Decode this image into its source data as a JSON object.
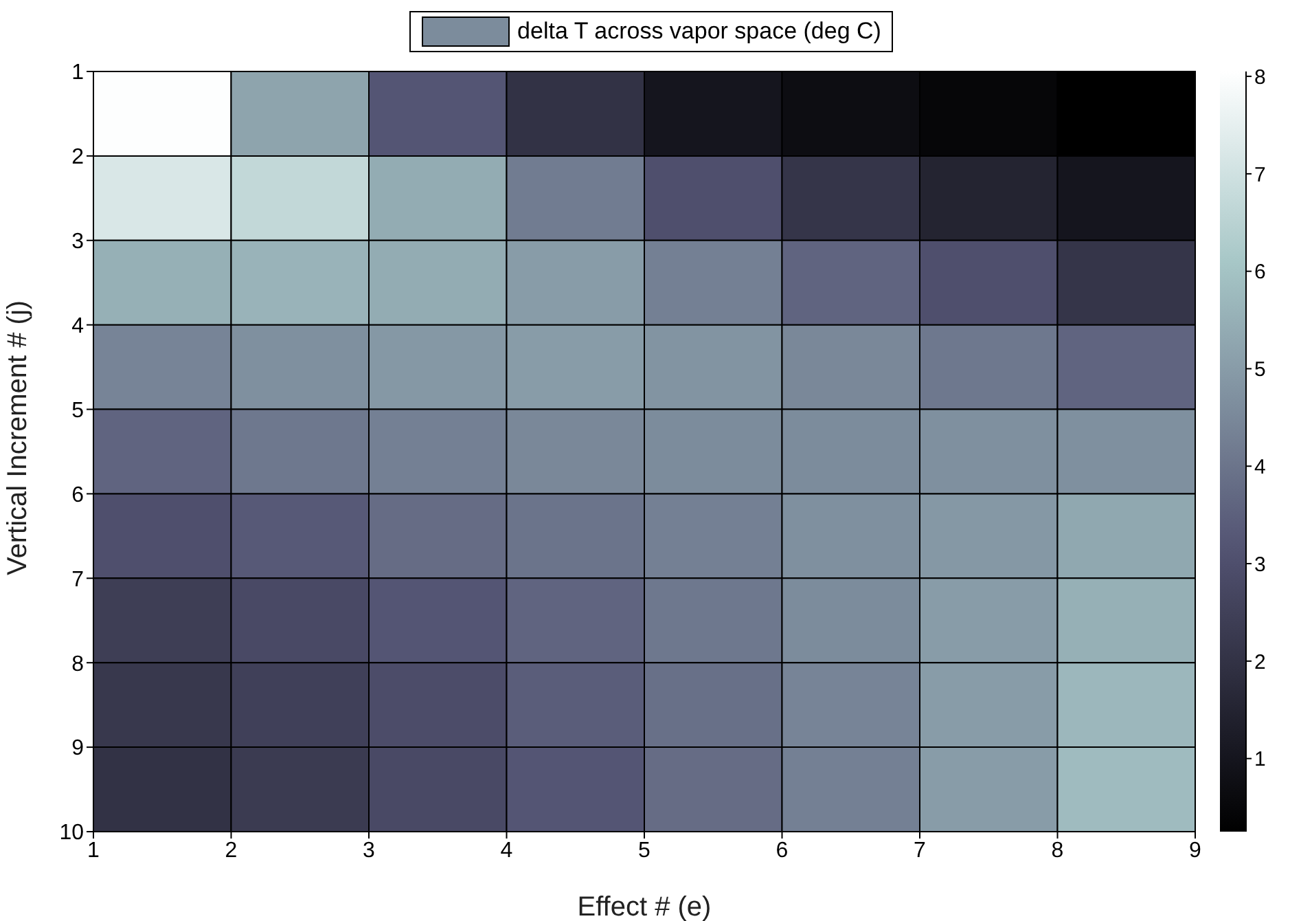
{
  "chart_data": {
    "type": "heatmap",
    "xlabel": "Effect # (e)",
    "ylabel": "Vertical Increment # (j)",
    "legend_title": "delta T across vapor space (deg C)",
    "xlim": [
      1,
      9
    ],
    "xticks": [
      1,
      2,
      3,
      4,
      5,
      6,
      7,
      8,
      9
    ],
    "ylim": [
      10,
      1
    ],
    "yticks": [
      1,
      2,
      3,
      4,
      5,
      6,
      7,
      8,
      9,
      10
    ],
    "cells": [
      [
        8.0,
        5.2,
        3.2,
        2.0,
        1.0,
        0.7,
        0.45,
        0.25
      ],
      [
        7.2,
        6.7,
        5.4,
        4.2,
        3.0,
        2.1,
        1.5,
        1.0
      ],
      [
        5.5,
        5.6,
        5.4,
        5.0,
        4.3,
        3.6,
        3.0,
        2.1
      ],
      [
        4.4,
        4.7,
        4.9,
        5.0,
        4.8,
        4.5,
        4.1,
        3.6
      ],
      [
        3.6,
        4.1,
        4.3,
        4.5,
        4.6,
        4.6,
        4.7,
        4.7
      ],
      [
        3.0,
        3.3,
        3.8,
        4.0,
        4.3,
        4.7,
        4.9,
        5.3
      ],
      [
        2.4,
        2.8,
        3.2,
        3.6,
        4.1,
        4.6,
        5.0,
        5.5
      ],
      [
        2.2,
        2.5,
        2.9,
        3.4,
        3.9,
        4.4,
        5.0,
        5.7
      ],
      [
        2.0,
        2.3,
        2.8,
        3.2,
        3.8,
        4.3,
        5.0,
        5.8
      ]
    ],
    "clim": [
      0.25,
      8.05
    ],
    "cticks": [
      1,
      2,
      3,
      4,
      5,
      6,
      7,
      8
    ]
  }
}
